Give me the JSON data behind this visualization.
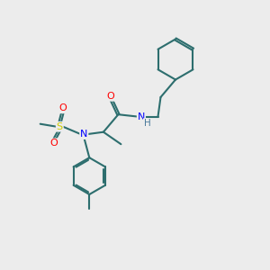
{
  "bg_color": "#ececec",
  "bond_color": "#2d6e6e",
  "atom_colors": {
    "O": "#ff0000",
    "N": "#0000ff",
    "S": "#cccc00",
    "H": "#4a7a9b",
    "C": "#2d6e6e"
  },
  "line_width": 1.5,
  "doffset": 0.045,
  "xlim": [
    0,
    10
  ],
  "ylim": [
    0,
    10
  ]
}
